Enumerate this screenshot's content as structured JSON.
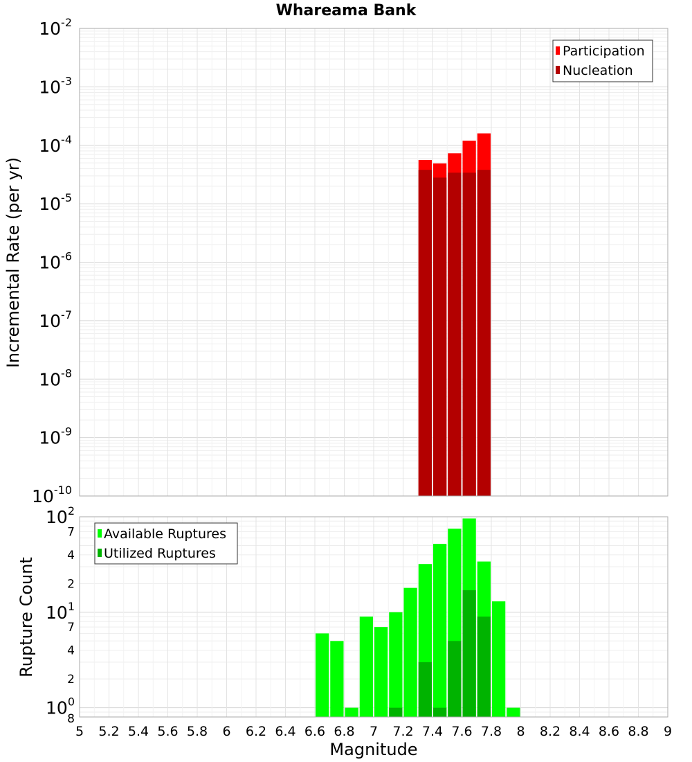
{
  "title": "Whareama Bank",
  "chart_data": [
    {
      "type": "bar",
      "title": "Whareama Bank",
      "xlabel": "Magnitude",
      "ylabel": "Incremental Rate (per yr)",
      "yscale": "log",
      "ylim": [
        1e-10,
        0.01
      ],
      "xlim": [
        5,
        9
      ],
      "x_ticks": [
        "5",
        "5.2",
        "5.4",
        "5.6",
        "5.8",
        "6",
        "6.2",
        "6.4",
        "6.6",
        "6.8",
        "7",
        "7.2",
        "7.4",
        "7.6",
        "7.8",
        "8",
        "8.2",
        "8.4",
        "8.6",
        "8.8",
        "9"
      ],
      "y_tick_labels": [
        {
          "base": "10",
          "exp": "-2",
          "value": 0.01
        },
        {
          "base": "10",
          "exp": "-3",
          "value": 0.001
        },
        {
          "base": "10",
          "exp": "-4",
          "value": 0.0001
        },
        {
          "base": "10",
          "exp": "-5",
          "value": 1e-05
        },
        {
          "base": "10",
          "exp": "-6",
          "value": 1e-06
        },
        {
          "base": "10",
          "exp": "-7",
          "value": 1e-07
        },
        {
          "base": "10",
          "exp": "-8",
          "value": 1e-08
        },
        {
          "base": "10",
          "exp": "-9",
          "value": 1e-09
        },
        {
          "base": "10",
          "exp": "-10",
          "value": 1e-10
        }
      ],
      "x": [
        7.35,
        7.45,
        7.55,
        7.65,
        7.75
      ],
      "series": [
        {
          "name": "Participation",
          "color": "#ff0000",
          "values": [
            5.6e-05,
            4.9e-05,
            7.3e-05,
            0.00012,
            0.00016
          ]
        },
        {
          "name": "Nucleation",
          "color": "#b30000",
          "values": [
            3.8e-05,
            2.8e-05,
            3.4e-05,
            3.4e-05,
            3.8e-05
          ]
        }
      ],
      "legend_position": "top-right",
      "grid": true
    },
    {
      "type": "bar",
      "xlabel": "Magnitude",
      "ylabel": "Rupture Count",
      "yscale": "log",
      "ylim": [
        0.8,
        100
      ],
      "xlim": [
        5,
        9
      ],
      "y_tick_labels": [
        {
          "base": "10",
          "exp": "2",
          "value": 100
        },
        {
          "base": "7",
          "exp": "",
          "value": 70
        },
        {
          "base": "4",
          "exp": "",
          "value": 40
        },
        {
          "base": "2",
          "exp": "",
          "value": 20
        },
        {
          "base": "10",
          "exp": "1",
          "value": 10
        },
        {
          "base": "7",
          "exp": "",
          "value": 7
        },
        {
          "base": "4",
          "exp": "",
          "value": 4
        },
        {
          "base": "2",
          "exp": "",
          "value": 2
        },
        {
          "base": "10",
          "exp": "0",
          "value": 1
        },
        {
          "base": "8",
          "exp": "",
          "value": 0.8
        }
      ],
      "x": [
        6.65,
        6.75,
        6.85,
        6.95,
        7.05,
        7.15,
        7.25,
        7.35,
        7.45,
        7.55,
        7.65,
        7.75,
        7.85,
        7.95
      ],
      "series": [
        {
          "name": "Available Ruptures",
          "color": "#00ff00",
          "values": [
            6,
            5,
            1,
            9,
            7,
            10,
            18,
            32,
            52,
            75,
            96,
            34,
            13,
            1
          ]
        },
        {
          "name": "Utilized Ruptures",
          "color": "#00b300",
          "values": [
            0,
            0,
            0,
            0,
            0,
            1,
            0,
            3,
            1,
            5,
            17,
            9,
            0,
            0
          ]
        }
      ],
      "legend_position": "top-left",
      "grid": true
    }
  ]
}
